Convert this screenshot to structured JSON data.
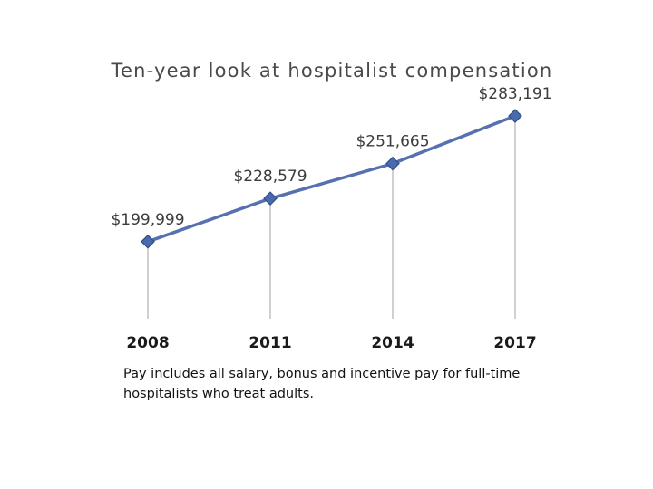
{
  "chart_data": {
    "type": "line",
    "title": "Ten-year look at hospitalist compensation",
    "xlabel": "",
    "ylabel": "",
    "categories": [
      "2008",
      "2011",
      "2014",
      "2017"
    ],
    "series": [
      {
        "values": [
          199999,
          228579,
          251665,
          283191
        ],
        "data_labels": [
          "$199,999",
          "$228,579",
          "$251,665",
          "$283,191"
        ]
      }
    ],
    "ylim": [
      150000,
      300000
    ],
    "grid": false,
    "legend": "none",
    "drop_lines": true,
    "marker": "diamond",
    "colors": {
      "line": "#5670b0",
      "marker_fill": "#4a6aae",
      "marker_stroke": "#2f4f8a",
      "drop_line": "#a0a0a0"
    },
    "note": "Pay includes all salary, bonus and incentive pay for full-time hospitalists who treat adults."
  }
}
